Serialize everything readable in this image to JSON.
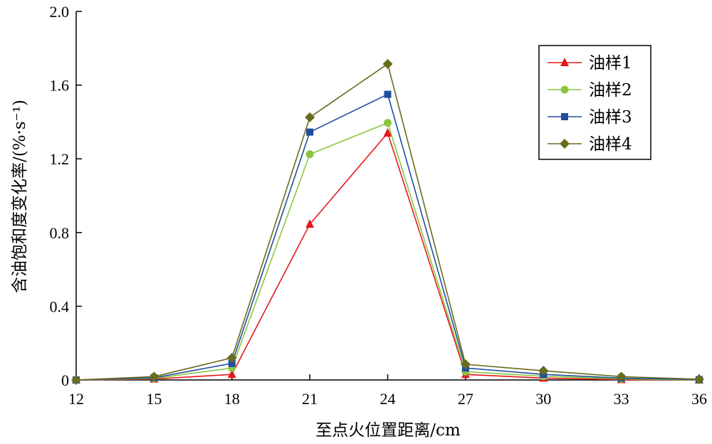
{
  "chart_data": {
    "type": "line",
    "xlabel": "至点火位置距离/cm",
    "ylabel": "含油饱和度变化率/(%·s⁻¹)",
    "x": [
      12,
      15,
      18,
      21,
      24,
      27,
      30,
      33,
      36
    ],
    "xlim": [
      12,
      36
    ],
    "ylim": [
      0,
      2.0
    ],
    "x_ticks": [
      "12",
      "15",
      "18",
      "21",
      "24",
      "27",
      "30",
      "33",
      "36"
    ],
    "y_ticks": [
      "0",
      "0.4",
      "0.8",
      "1.2",
      "1.6",
      "2.0"
    ],
    "y_tick_values": [
      0,
      0.4,
      0.8,
      1.2,
      1.6,
      2.0
    ],
    "grid": false,
    "legend_position": "top-right",
    "series": [
      {
        "name": "油样1",
        "color": "#e31a1c",
        "marker": "triangle",
        "values": [
          0.0,
          0.005,
          0.03,
          0.845,
          1.34,
          0.03,
          0.01,
          0.002,
          0.0
        ]
      },
      {
        "name": "油样2",
        "color": "#8cc63f",
        "marker": "circle",
        "values": [
          0.0,
          0.008,
          0.065,
          1.225,
          1.395,
          0.045,
          0.02,
          0.006,
          0.0
        ]
      },
      {
        "name": "油样3",
        "color": "#1f4e9e",
        "marker": "square",
        "values": [
          0.0,
          0.012,
          0.09,
          1.345,
          1.55,
          0.065,
          0.03,
          0.01,
          0.002
        ]
      },
      {
        "name": "油样4",
        "color": "#6b6b1e",
        "marker": "diamond",
        "values": [
          0.0,
          0.018,
          0.12,
          1.425,
          1.715,
          0.085,
          0.05,
          0.018,
          0.004
        ]
      }
    ]
  }
}
